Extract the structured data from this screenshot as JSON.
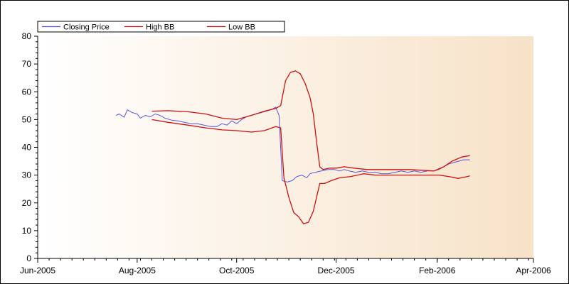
{
  "colors": {
    "closing": "#5555dd",
    "high_bb": "#cc1111",
    "low_bb": "#cc1111",
    "plot_bg_left": "#ffffff",
    "plot_bg_right": "#f7e2c8",
    "axis": "#000000"
  },
  "chart_data": {
    "type": "line",
    "title": "",
    "xlabel": "",
    "ylabel": "",
    "x_axis": {
      "kind": "date",
      "min": "2005-06-01",
      "max": "2006-04-01",
      "tick_labels": [
        "Jun-2005",
        "Aug-2005",
        "Oct-2005",
        "Dec-2005",
        "Feb-2006",
        "Apr-2006"
      ],
      "tick_dates": [
        "2005-06-01",
        "2005-08-01",
        "2005-10-01",
        "2005-12-01",
        "2006-02-01",
        "2006-04-01"
      ]
    },
    "ylim": [
      0,
      80
    ],
    "y_ticks": [
      0,
      10,
      20,
      30,
      40,
      50,
      60,
      70,
      80
    ],
    "grid": false,
    "legend_position": "top-left",
    "series": [
      {
        "name": "Closing Price",
        "color_key": "closing",
        "points": [
          [
            "2005-07-19",
            51.5
          ],
          [
            "2005-07-21",
            52.0
          ],
          [
            "2005-07-24",
            50.8
          ],
          [
            "2005-07-26",
            53.5
          ],
          [
            "2005-07-29",
            52.5
          ],
          [
            "2005-08-01",
            52.0
          ],
          [
            "2005-08-03",
            50.5
          ],
          [
            "2005-08-06",
            51.5
          ],
          [
            "2005-08-09",
            51.0
          ],
          [
            "2005-08-12",
            52.0
          ],
          [
            "2005-08-15",
            51.5
          ],
          [
            "2005-08-18",
            50.5
          ],
          [
            "2005-08-22",
            49.8
          ],
          [
            "2005-08-26",
            49.5
          ],
          [
            "2005-08-30",
            49.0
          ],
          [
            "2005-09-03",
            48.5
          ],
          [
            "2005-09-07",
            48.5
          ],
          [
            "2005-09-11",
            48.0
          ],
          [
            "2005-09-15",
            47.5
          ],
          [
            "2005-09-19",
            47.5
          ],
          [
            "2005-09-22",
            48.5
          ],
          [
            "2005-09-25",
            48.0
          ],
          [
            "2005-09-28",
            49.5
          ],
          [
            "2005-10-01",
            48.5
          ],
          [
            "2005-10-04",
            50.0
          ],
          [
            "2005-10-07",
            51.0
          ],
          [
            "2005-10-10",
            51.5
          ],
          [
            "2005-10-13",
            52.0
          ],
          [
            "2005-10-16",
            52.5
          ],
          [
            "2005-10-19",
            53.0
          ],
          [
            "2005-10-22",
            53.5
          ],
          [
            "2005-10-25",
            54.5
          ],
          [
            "2005-10-27",
            51.5
          ],
          [
            "2005-10-29",
            28.0
          ],
          [
            "2005-11-01",
            27.5
          ],
          [
            "2005-11-04",
            28.0
          ],
          [
            "2005-11-07",
            29.5
          ],
          [
            "2005-11-10",
            30.0
          ],
          [
            "2005-11-13",
            29.0
          ],
          [
            "2005-11-15",
            30.5
          ],
          [
            "2005-11-18",
            31.0
          ],
          [
            "2005-11-22",
            31.5
          ],
          [
            "2005-11-26",
            32.0
          ],
          [
            "2005-11-30",
            32.0
          ],
          [
            "2005-12-03",
            31.5
          ],
          [
            "2005-12-06",
            32.0
          ],
          [
            "2005-12-09",
            31.5
          ],
          [
            "2005-12-13",
            31.0
          ],
          [
            "2005-12-17",
            31.5
          ],
          [
            "2005-12-21",
            31.0
          ],
          [
            "2005-12-25",
            31.0
          ],
          [
            "2005-12-29",
            30.5
          ],
          [
            "2006-01-02",
            30.5
          ],
          [
            "2006-01-06",
            31.0
          ],
          [
            "2006-01-10",
            31.5
          ],
          [
            "2006-01-14",
            31.0
          ],
          [
            "2006-01-18",
            31.5
          ],
          [
            "2006-01-22",
            31.0
          ],
          [
            "2006-01-26",
            31.5
          ],
          [
            "2006-01-30",
            31.5
          ],
          [
            "2006-02-02",
            32.0
          ],
          [
            "2006-02-05",
            33.0
          ],
          [
            "2006-02-08",
            34.0
          ],
          [
            "2006-02-11",
            34.5
          ],
          [
            "2006-02-14",
            35.0
          ],
          [
            "2006-02-17",
            35.5
          ],
          [
            "2006-02-21",
            35.5
          ]
        ]
      },
      {
        "name": "High BB",
        "color_key": "high_bb",
        "points": [
          [
            "2005-08-10",
            53.0
          ],
          [
            "2005-08-20",
            53.2
          ],
          [
            "2005-09-01",
            52.8
          ],
          [
            "2005-09-12",
            52.0
          ],
          [
            "2005-09-22",
            50.5
          ],
          [
            "2005-10-01",
            50.0
          ],
          [
            "2005-10-10",
            51.5
          ],
          [
            "2005-10-18",
            53.0
          ],
          [
            "2005-10-25",
            54.0
          ],
          [
            "2005-10-28",
            55.0
          ],
          [
            "2005-10-31",
            64.0
          ],
          [
            "2005-11-03",
            67.0
          ],
          [
            "2005-11-06",
            67.5
          ],
          [
            "2005-11-09",
            66.5
          ],
          [
            "2005-11-12",
            63.0
          ],
          [
            "2005-11-15",
            58.0
          ],
          [
            "2005-11-17",
            52.0
          ],
          [
            "2005-11-19",
            42.0
          ],
          [
            "2005-11-21",
            33.0
          ],
          [
            "2005-11-23",
            32.0
          ],
          [
            "2005-11-27",
            32.5
          ],
          [
            "2005-12-01",
            32.5
          ],
          [
            "2005-12-06",
            33.0
          ],
          [
            "2005-12-12",
            32.5
          ],
          [
            "2005-12-20",
            32.0
          ],
          [
            "2006-01-01",
            32.0
          ],
          [
            "2006-01-15",
            32.0
          ],
          [
            "2006-01-30",
            31.5
          ],
          [
            "2006-02-05",
            33.0
          ],
          [
            "2006-02-10",
            35.0
          ],
          [
            "2006-02-16",
            36.5
          ],
          [
            "2006-02-21",
            37.0
          ]
        ]
      },
      {
        "name": "Low BB",
        "color_key": "low_bb",
        "points": [
          [
            "2005-08-10",
            50.0
          ],
          [
            "2005-08-20",
            49.0
          ],
          [
            "2005-09-01",
            48.0
          ],
          [
            "2005-09-12",
            47.0
          ],
          [
            "2005-09-22",
            46.3
          ],
          [
            "2005-10-01",
            46.0
          ],
          [
            "2005-10-10",
            45.5
          ],
          [
            "2005-10-18",
            46.0
          ],
          [
            "2005-10-25",
            47.5
          ],
          [
            "2005-10-28",
            47.0
          ],
          [
            "2005-10-30",
            29.0
          ],
          [
            "2005-11-02",
            22.0
          ],
          [
            "2005-11-05",
            16.5
          ],
          [
            "2005-11-08",
            15.0
          ],
          [
            "2005-11-11",
            12.5
          ],
          [
            "2005-11-14",
            13.0
          ],
          [
            "2005-11-17",
            17.0
          ],
          [
            "2005-11-19",
            22.0
          ],
          [
            "2005-11-21",
            27.0
          ],
          [
            "2005-11-24",
            27.0
          ],
          [
            "2005-11-28",
            28.0
          ],
          [
            "2005-12-03",
            29.0
          ],
          [
            "2005-12-10",
            29.5
          ],
          [
            "2005-12-18",
            30.5
          ],
          [
            "2005-12-25",
            30.0
          ],
          [
            "2006-01-05",
            30.0
          ],
          [
            "2006-01-20",
            30.0
          ],
          [
            "2006-02-02",
            30.0
          ],
          [
            "2006-02-08",
            29.5
          ],
          [
            "2006-02-14",
            28.8
          ],
          [
            "2006-02-18",
            29.3
          ],
          [
            "2006-02-21",
            29.7
          ]
        ]
      }
    ]
  }
}
